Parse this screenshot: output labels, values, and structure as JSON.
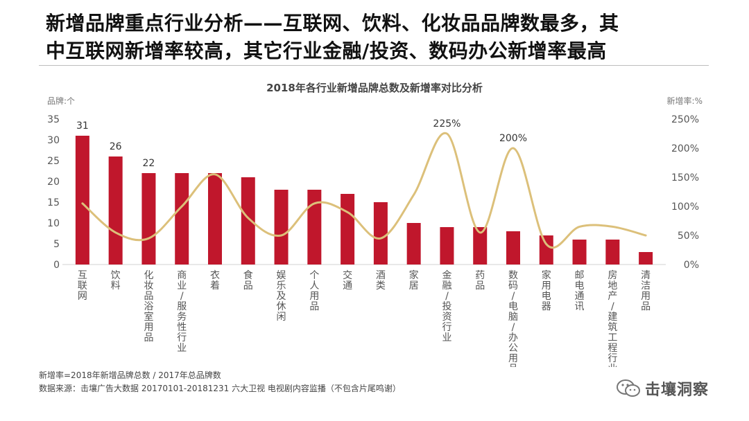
{
  "headline": {
    "line1": "新增品牌重点行业分析——互联网、饮料、化妆品品牌数最多，其",
    "line2": "中互联网新增率较高，其它行业金融/投资、数码办公新增率最高"
  },
  "chart_data": {
    "type": "bar+line",
    "title": "2018年各行业新增品牌总数及新增率对比分析",
    "y_left_label": "品牌:个",
    "y_right_label": "新增率:%",
    "y_left_range": [
      0,
      35
    ],
    "y_left_ticks": [
      0,
      5,
      10,
      15,
      20,
      25,
      30,
      35
    ],
    "y_right_range": [
      0,
      250
    ],
    "y_right_ticks": [
      "0%",
      "50%",
      "100%",
      "150%",
      "200%",
      "250%"
    ],
    "categories": [
      "互联网",
      "饮料",
      "化妆品浴室用品",
      "商业服务性行业",
      "衣着",
      "食品",
      "娱乐及休闲",
      "个人用品",
      "交通",
      "酒类",
      "家居",
      "金融投资行业",
      "药品",
      "数码电脑办公用品",
      "家用电器",
      "邮电通讯",
      "房地产建筑工程行业",
      "清洁用品"
    ],
    "category_lines": [
      [
        "互",
        "联",
        "网"
      ],
      [
        "饮",
        "料"
      ],
      [
        "化",
        "妆",
        "品",
        "浴",
        "室",
        "用",
        "品"
      ],
      [
        "商",
        "业",
        "/",
        "服",
        "务",
        "性",
        "行",
        "业"
      ],
      [
        "衣",
        "着"
      ],
      [
        "食",
        "品"
      ],
      [
        "娱",
        "乐",
        "及",
        "休",
        "闲"
      ],
      [
        "个",
        "人",
        "用",
        "品"
      ],
      [
        "交",
        "通"
      ],
      [
        "酒",
        "类"
      ],
      [
        "家",
        "居"
      ],
      [
        "金",
        "融",
        "/",
        "投",
        "资",
        "行",
        "业"
      ],
      [
        "药",
        "品"
      ],
      [
        "数",
        "码",
        "/",
        "电",
        "脑",
        "/",
        "办",
        "公",
        "用",
        "品"
      ],
      [
        "家",
        "用",
        "电",
        "器"
      ],
      [
        "邮",
        "电",
        "通",
        "讯"
      ],
      [
        "房",
        "地",
        "产",
        "/",
        "建",
        "筑",
        "工",
        "程",
        "行",
        "业"
      ],
      [
        "清",
        "洁",
        "用",
        "品"
      ]
    ],
    "series": [
      {
        "name": "新增品牌总数",
        "type": "bar",
        "axis": "left",
        "color": "#c0172c",
        "values": [
          31,
          26,
          22,
          22,
          22,
          21,
          18,
          18,
          17,
          15,
          10,
          9,
          9,
          8,
          7,
          6,
          6,
          3
        ]
      },
      {
        "name": "新增率",
        "type": "line",
        "axis": "right",
        "color": "#dcc07a",
        "values": [
          105,
          55,
          45,
          100,
          155,
          80,
          50,
          105,
          90,
          45,
          120,
          225,
          55,
          200,
          35,
          65,
          65,
          50
        ]
      }
    ],
    "data_labels": [
      {
        "series": 0,
        "index": 0,
        "text": "31"
      },
      {
        "series": 0,
        "index": 1,
        "text": "26"
      },
      {
        "series": 0,
        "index": 2,
        "text": "22"
      },
      {
        "series": 1,
        "index": 11,
        "text": "225%"
      },
      {
        "series": 1,
        "index": 13,
        "text": "200%"
      }
    ]
  },
  "notes": {
    "formula": "新增率=2018年新增品牌总数 / 2017年总品牌数",
    "source": "数据来源：击壤广告大数据 20170101-20181231 六大卫视 电视剧内容监播（不包含片尾鸣谢）"
  },
  "brand": {
    "name": "击壤洞察",
    "icon": "wechat-icon"
  }
}
